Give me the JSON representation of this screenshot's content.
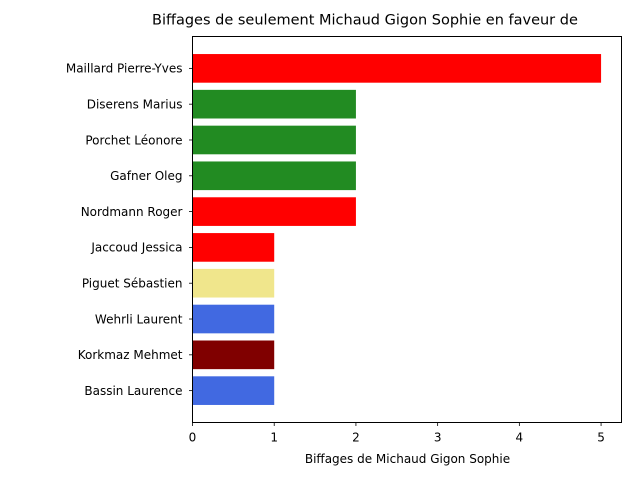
{
  "chart_data": {
    "type": "bar",
    "orientation": "horizontal",
    "title": "Biffages de seulement Michaud Gigon Sophie en faveur de",
    "xlabel": "Biffages de Michaud Gigon Sophie",
    "ylabel": "",
    "xlim": [
      0,
      5.25
    ],
    "xticks": [
      0,
      1,
      2,
      3,
      4,
      5
    ],
    "grid": false,
    "categories": [
      "Maillard Pierre-Yves",
      "Diserens Marius",
      "Porchet Léonore",
      "Gafner Oleg",
      "Nordmann Roger",
      "Jaccoud Jessica",
      "Piguet Sébastien",
      "Wehrli Laurent",
      "Korkmaz Mehmet",
      "Bassin Laurence"
    ],
    "values": [
      5,
      2,
      2,
      2,
      2,
      1,
      1,
      1,
      1,
      1
    ],
    "colors": [
      "#ff0000",
      "#228b22",
      "#228b22",
      "#228b22",
      "#ff0000",
      "#ff0000",
      "#f0e68c",
      "#4169e1",
      "#800000",
      "#4169e1"
    ]
  }
}
